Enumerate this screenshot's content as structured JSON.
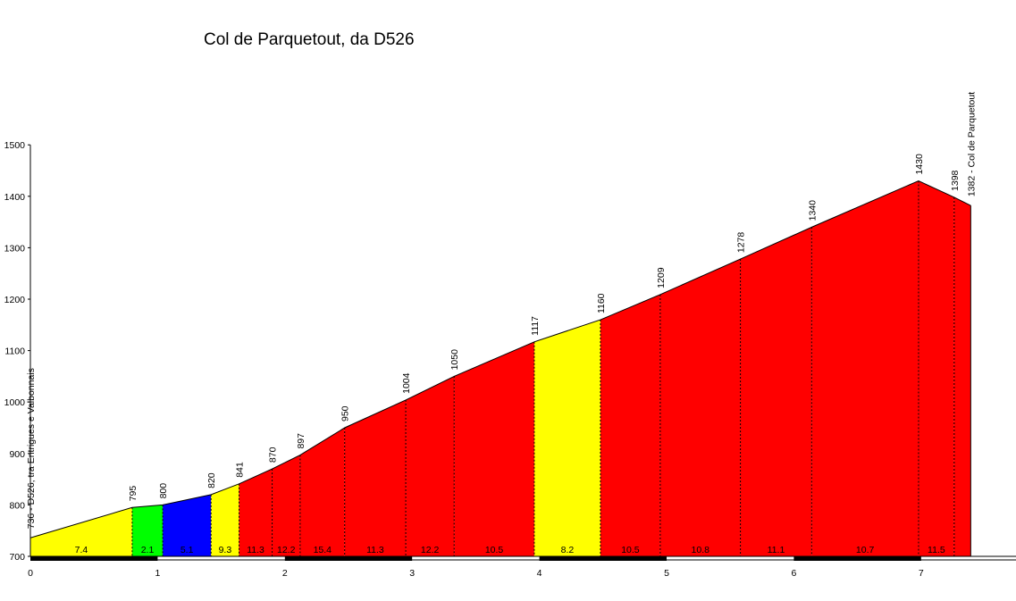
{
  "chart_data": {
    "type": "area",
    "title": "Col de Parquetout, da D526",
    "xlabel": "",
    "ylabel": "",
    "xlim": [
      0,
      7.75
    ],
    "ylim": [
      700,
      1500
    ],
    "x_ticks": [
      0,
      1,
      2,
      3,
      4,
      5,
      6,
      7
    ],
    "y_ticks": [
      700,
      800,
      900,
      1000,
      1100,
      1200,
      1300,
      1400,
      1500
    ],
    "grid": false,
    "legend": "none",
    "profile": [
      {
        "x": 0.0,
        "y": 736,
        "label": "736 - D526, tra Entrigues e Valbonnais"
      },
      {
        "x": 0.8,
        "y": 795,
        "label": "795"
      },
      {
        "x": 1.04,
        "y": 800,
        "label": "800"
      },
      {
        "x": 1.42,
        "y": 820,
        "label": "820"
      },
      {
        "x": 1.64,
        "y": 841,
        "label": "841"
      },
      {
        "x": 1.9,
        "y": 870,
        "label": "870"
      },
      {
        "x": 2.12,
        "y": 897,
        "label": "897"
      },
      {
        "x": 2.47,
        "y": 950,
        "label": "950"
      },
      {
        "x": 2.95,
        "y": 1004,
        "label": "1004"
      },
      {
        "x": 3.33,
        "y": 1050,
        "label": "1050"
      },
      {
        "x": 3.96,
        "y": 1117,
        "label": "1117"
      },
      {
        "x": 4.48,
        "y": 1160,
        "label": "1160"
      },
      {
        "x": 4.95,
        "y": 1209,
        "label": "1209"
      },
      {
        "x": 5.58,
        "y": 1278,
        "label": "1278"
      },
      {
        "x": 6.14,
        "y": 1340,
        "label": "1340"
      },
      {
        "x": 6.98,
        "y": 1430,
        "label": "1430"
      },
      {
        "x": 7.26,
        "y": 1398,
        "label": "1398"
      },
      {
        "x": 7.39,
        "y": 1382,
        "label": "1382 - Col de Parquetout"
      }
    ],
    "segments": [
      {
        "grade": "7.4",
        "color": "#ffff00"
      },
      {
        "grade": "2.1",
        "color": "#00ff00"
      },
      {
        "grade": "5.1",
        "color": "#0000ff"
      },
      {
        "grade": "9.3",
        "color": "#ffff00"
      },
      {
        "grade": "11.3",
        "color": "#ff0000"
      },
      {
        "grade": "12.2",
        "color": "#ff0000"
      },
      {
        "grade": "15.4",
        "color": "#ff0000"
      },
      {
        "grade": "11.3",
        "color": "#ff0000"
      },
      {
        "grade": "12.2",
        "color": "#ff0000"
      },
      {
        "grade": "10.5",
        "color": "#ff0000"
      },
      {
        "grade": "8.2",
        "color": "#ffff00"
      },
      {
        "grade": "10.5",
        "color": "#ff0000"
      },
      {
        "grade": "10.8",
        "color": "#ff0000"
      },
      {
        "grade": "11.1",
        "color": "#ff0000"
      },
      {
        "grade": "10.7",
        "color": "#ff0000"
      },
      {
        "grade": "11.5",
        "color": "#ff0000"
      },
      {
        "grade": "",
        "color": "#ff0000"
      }
    ]
  }
}
